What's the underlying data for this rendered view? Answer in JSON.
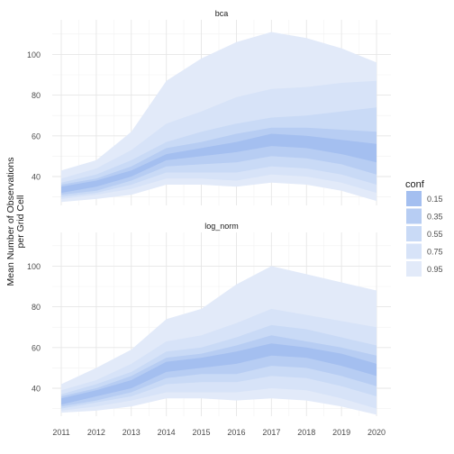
{
  "chart_data": {
    "type": "area",
    "ylabel": "Mean Number of Observations\nper Grid Cell",
    "xlabel": "",
    "x": [
      2011,
      2012,
      2013,
      2014,
      2015,
      2016,
      2017,
      2018,
      2019,
      2020
    ],
    "x_ticks": [
      "2011",
      "2012",
      "2013",
      "2014",
      "2015",
      "2016",
      "2017",
      "2018",
      "2019",
      "2020"
    ],
    "y_ticks": [
      40,
      60,
      80,
      100
    ],
    "ylim": [
      26,
      114
    ],
    "grid": true,
    "legend": {
      "title": "conf",
      "position": "right",
      "entries": [
        "0.15",
        "0.35",
        "0.55",
        "0.75",
        "0.95"
      ],
      "colors": [
        "#a4bff0",
        "#b7cdf3",
        "#c9daf6",
        "#d7e3f8",
        "#e2eaf9"
      ]
    },
    "panels": [
      {
        "strip": "bca",
        "bands": [
          {
            "conf": "0.95",
            "lower": [
              27.5,
              29,
              31,
              36,
              36,
              35,
              37,
              36,
              33,
              28
            ],
            "upper": [
              43,
              48,
              62,
              87,
              98,
              106,
              111,
              108,
              103,
              96
            ]
          },
          {
            "conf": "0.75",
            "lower": [
              29,
              31,
              34,
              39,
              39,
              38,
              41,
              40,
              37,
              32
            ],
            "upper": [
              39,
              44,
              53,
              66,
              72,
              79,
              83,
              84,
              86,
              87
            ]
          },
          {
            "conf": "0.55",
            "lower": [
              30,
              32,
              36,
              42,
              42,
              42,
              45,
              44,
              41,
              36
            ],
            "upper": [
              37,
              41,
              48,
              57,
              62,
              66,
              69,
              70,
              72,
              74
            ]
          },
          {
            "conf": "0.35",
            "lower": [
              31,
              33,
              38,
              45,
              46,
              47,
              50,
              49,
              46,
              41
            ],
            "upper": [
              36,
              39,
              45,
              54,
              57,
              61,
              64,
              64,
              63,
              62
            ]
          },
          {
            "conf": "0.15",
            "lower": [
              32,
              35,
              40,
              48,
              50,
              52,
              55,
              54,
              51,
              47
            ],
            "upper": [
              35,
              38,
              43,
              51,
              54,
              57,
              61,
              60,
              58,
              56
            ]
          }
        ]
      },
      {
        "strip": "log_norm",
        "bands": [
          {
            "conf": "0.95",
            "lower": [
              28,
              29,
              31,
              35,
              35,
              34,
              35,
              34,
              31,
              27
            ],
            "upper": [
              42,
              50,
              59,
              74,
              79,
              91,
              100,
              96,
              92,
              88
            ]
          },
          {
            "conf": "0.75",
            "lower": [
              29,
              31,
              34,
              38,
              38,
              38,
              40,
              39,
              35,
              30
            ],
            "upper": [
              39,
              44,
              52,
              63,
              66,
              72,
              79,
              76,
              73,
              70
            ]
          },
          {
            "conf": "0.55",
            "lower": [
              30,
              33,
              36,
              42,
              43,
              43,
              46,
              45,
              41,
              36
            ],
            "upper": [
              37,
              42,
              48,
              58,
              60,
              65,
              71,
              69,
              65,
              61
            ]
          },
          {
            "conf": "0.35",
            "lower": [
              31,
              34,
              38,
              45,
              47,
              47,
              51,
              50,
              46,
              41
            ],
            "upper": [
              36,
              40,
              46,
              55,
              57,
              61,
              66,
              63,
              60,
              56
            ]
          },
          {
            "conf": "0.15",
            "lower": [
              32,
              36,
              40,
              48,
              50,
              52,
              56,
              55,
              51,
              46
            ],
            "upper": [
              35,
              39,
              44,
              53,
              55,
              58,
              62,
              60,
              57,
              52
            ]
          }
        ]
      }
    ]
  }
}
